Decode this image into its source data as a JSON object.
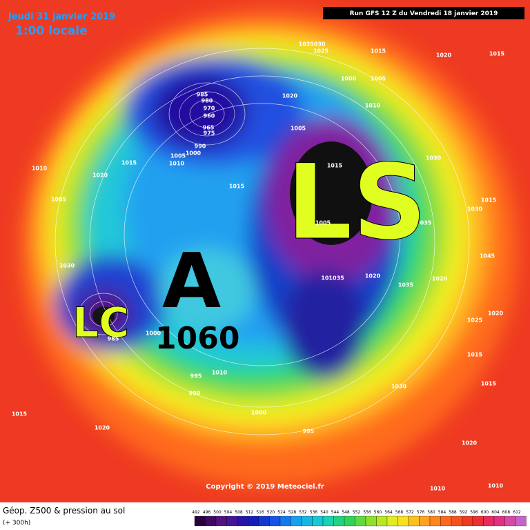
{
  "header": {
    "date": "Jeudi 31 janvier 2019",
    "time": "1:00 locale",
    "run": "Run GFS 12 Z du Vendredi 18 janvier 2019"
  },
  "annotations": {
    "ls": "LS",
    "high": "A",
    "high_value": "1060",
    "lc": "LC"
  },
  "isobar_labels": [
    "1035030",
    "1025",
    "1015",
    "1020",
    "1015",
    "1000",
    "1005",
    "1020",
    "1010",
    "985",
    "980",
    "970",
    "960",
    "965",
    "975",
    "1005",
    "990",
    "1005",
    "1000",
    "1010",
    "1015",
    "1020",
    "1010",
    "1015",
    "1030",
    "1015",
    "1005",
    "1015",
    "1030",
    "1005",
    "035",
    "1030",
    "1045",
    "1020",
    "1020",
    "1035",
    "101035",
    "1000",
    "985",
    "1025",
    "1020",
    "1015",
    "995",
    "1010",
    "990",
    "1030",
    "1015",
    "1000",
    "995",
    "1015",
    "1020",
    "1020",
    "1010",
    "1010"
  ],
  "footer": {
    "title": "Géop. Z500 & pression au sol",
    "lead": "(+ 300h)",
    "copyright": "Copyright © 2019 Meteociel.fr"
  },
  "legend": {
    "values": [
      "492",
      "496",
      "500",
      "504",
      "508",
      "512",
      "516",
      "520",
      "524",
      "528",
      "532",
      "536",
      "540",
      "544",
      "548",
      "552",
      "556",
      "560",
      "564",
      "568",
      "572",
      "576",
      "580",
      "584",
      "588",
      "592",
      "596",
      "600",
      "604",
      "608",
      "612"
    ]
  }
}
